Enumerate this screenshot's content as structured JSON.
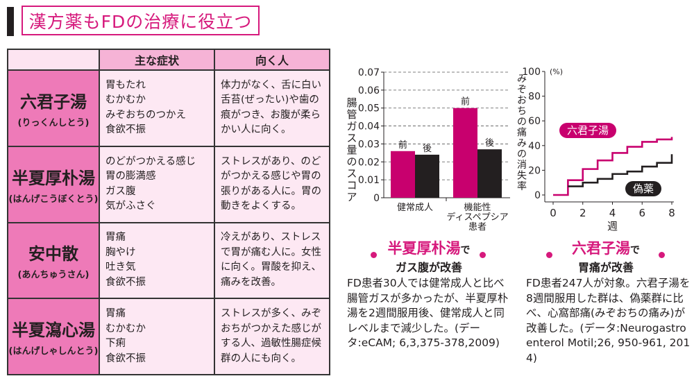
{
  "title": "漢方薬もFDの治療に役立つ",
  "table": {
    "headers": [
      "",
      "主な症状",
      "向く人"
    ],
    "rows": [
      {
        "name": "六君子湯",
        "reading": "(りっくんしとう)",
        "symptoms": "胃もたれ\nむかむか\nみぞおちのつかえ\n食欲不振",
        "suited": "体力がなく、舌に白い舌苔(ぜったい)や歯の痕がつき、お腹が柔らかい人に向く。"
      },
      {
        "name": "半夏厚朴湯",
        "reading": "(はんげこうぼくとう)",
        "symptoms": "のどがつかえる感じ\n胃の膨満感\nガス腹\n気がふさぐ",
        "suited": "ストレスがあり、のどがつかえる感じや胃の張りがある人に。胃の動きをよくする。"
      },
      {
        "name": "安中散",
        "reading": "(あんちゅうさん)",
        "symptoms": "胃痛\n胸やけ\n吐き気\n食欲不振",
        "suited": "冷えがあり、ストレスで胃が痛む人に。女性に向く。胃酸を抑え、痛みを改善。"
      },
      {
        "name": "半夏瀉心湯",
        "reading": "(はんげしゃしんとう)",
        "symptoms": "胃痛\nむかむか\n下痢\n食欲不振",
        "suited": "ストレスが多く、みぞおちがつかえた感じがする人、過敏性腸症候群の人にも向く。"
      }
    ]
  },
  "chart_data": [
    {
      "type": "bar",
      "ylabel": "腸管ガス量のスコア",
      "ylim": [
        0,
        0.07
      ],
      "yticks": [
        "0",
        "0.01",
        "0.02",
        "0.03",
        "0.04",
        "0.05",
        "0.06",
        "0.07"
      ],
      "categories": [
        "健常成人",
        "機能性ディスペプシア患者"
      ],
      "category_lines": [
        [
          "健常成人"
        ],
        [
          "機能性",
          "ディスペプシア",
          "患者"
        ]
      ],
      "series": [
        {
          "name": "前",
          "values": [
            0.026,
            0.05
          ],
          "color": "#c8006e"
        },
        {
          "name": "後",
          "values": [
            0.024,
            0.027
          ],
          "color": "#231f20"
        }
      ],
      "grid": "dashed horizontal",
      "heading": {
        "drug": "半夏厚朴湯",
        "particle": "で",
        "effect": "ガス腹が改善"
      },
      "description": "FD患者30人では健常成人と比べ腸管ガスが多かったが、半夏厚朴湯を2週間服用後、健常成人と同レベルまで減少した。(データ:eCAM; 6,3,375-378,2009)"
    },
    {
      "type": "line",
      "step": true,
      "ylabel": "みぞおちの痛みの消失率",
      "yunit": "(%)",
      "xlabel": "週",
      "xlim": [
        0,
        8
      ],
      "ylim": [
        0,
        100
      ],
      "xticks": [
        "0",
        "2",
        "4",
        "6",
        "8"
      ],
      "yticks": [
        "0",
        "20",
        "40",
        "60",
        "80",
        "100"
      ],
      "series": [
        {
          "name": "六君子湯",
          "color": "#c8006e",
          "x": [
            0,
            1,
            2,
            3,
            4,
            5,
            6,
            7,
            8
          ],
          "y": [
            0,
            12,
            21,
            28,
            34,
            39,
            43,
            45,
            47
          ]
        },
        {
          "name": "偽薬",
          "color": "#231f20",
          "x": [
            1,
            2,
            3,
            4,
            5,
            6,
            7,
            8
          ],
          "y": [
            7,
            10,
            13,
            17,
            19,
            23,
            26,
            33
          ]
        }
      ],
      "heading": {
        "drug": "六君子湯",
        "particle": "で",
        "effect": "胃痛が改善"
      },
      "description": "FD患者247人が対象。六君子湯を8週間服用した群は、偽薬群に比べ、心窩部痛(みぞおちの痛み)が改善した。(データ:Neurogastroenterol Motil;26, 950-961, 2014)"
    }
  ]
}
